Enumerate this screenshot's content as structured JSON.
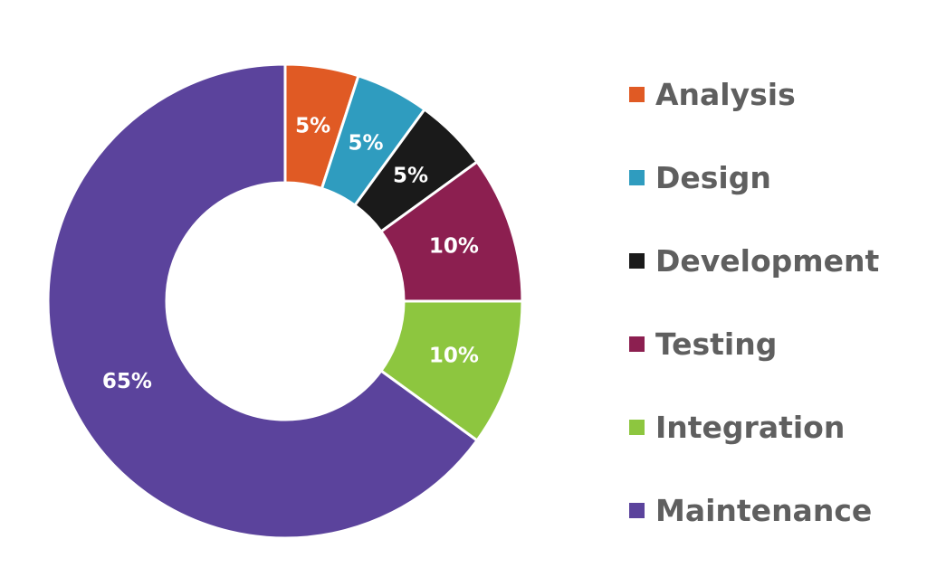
{
  "chart_data": {
    "type": "pie",
    "donut": true,
    "categories": [
      "Analysis",
      "Design",
      "Development",
      "Testing",
      "Integration",
      "Maintenance"
    ],
    "values": [
      5,
      5,
      5,
      10,
      10,
      65
    ],
    "labels": [
      "5%",
      "5%",
      "5%",
      "10%",
      "10%",
      "65%"
    ],
    "colors": [
      "#e05a24",
      "#2f9cbf",
      "#1a1a1a",
      "#8c1f50",
      "#8dc63f",
      "#5b439c"
    ],
    "legend_position": "right"
  }
}
